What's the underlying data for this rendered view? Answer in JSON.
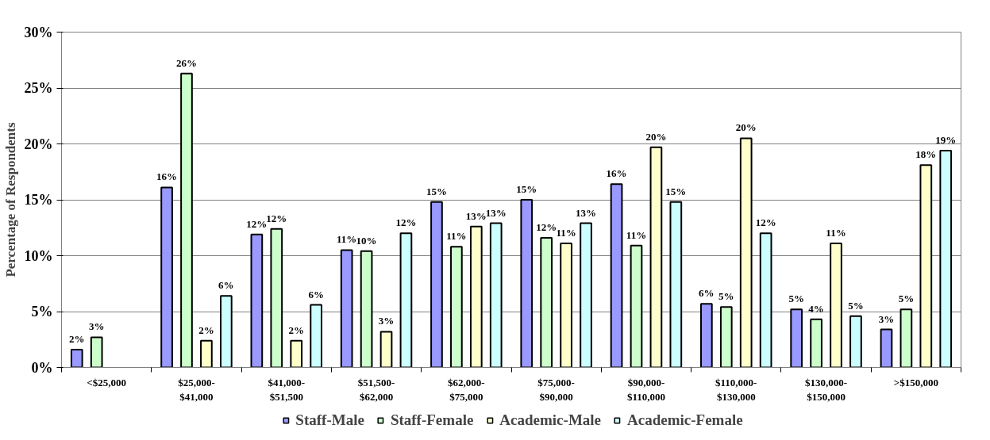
{
  "chart_data": {
    "type": "bar",
    "ylabel": "Percentage of Respondents",
    "categories": [
      "<$25,000",
      "$25,000-\n$41,000",
      "$41,000-\n$51,500",
      "$51,500-\n$62,000",
      "$62,000-\n$75,000",
      "$75,000-\n$90,000",
      "$90,000-\n$110,000",
      "$110,000-\n$130,000",
      "$130,000-\n$150,000",
      ">$150,000"
    ],
    "series": [
      {
        "name": "Staff-Male",
        "color": "#9999ff",
        "values": [
          1.6,
          16.1,
          11.9,
          10.5,
          14.8,
          15.0,
          16.4,
          5.7,
          5.2,
          3.4
        ],
        "value_labels": [
          "2%",
          "16%",
          "12%",
          "11%",
          "15%",
          "15%",
          "16%",
          "6%",
          "5%",
          "3%"
        ]
      },
      {
        "name": "Staff-Female",
        "color": "#ccffcc",
        "values": [
          2.7,
          26.3,
          12.4,
          10.4,
          10.8,
          11.6,
          10.9,
          5.4,
          4.3,
          5.2
        ],
        "value_labels": [
          "3%",
          "26%",
          "12%",
          "10%",
          "11%",
          "12%",
          "11%",
          "5%",
          "4%",
          "5%"
        ]
      },
      {
        "name": "Academic-Male",
        "color": "#ffffcc",
        "values": [
          null,
          2.4,
          2.4,
          3.2,
          12.6,
          11.1,
          19.7,
          20.5,
          11.1,
          18.1
        ],
        "value_labels": [
          null,
          "2%",
          "2%",
          "3%",
          "13%",
          "11%",
          "20%",
          "20%",
          "11%",
          "18%"
        ]
      },
      {
        "name": "Academic-Female",
        "color": "#ccffff",
        "values": [
          null,
          6.4,
          5.6,
          12.0,
          12.9,
          12.9,
          14.8,
          12.0,
          4.6,
          19.4
        ],
        "value_labels": [
          null,
          "6%",
          "6%",
          "12%",
          "13%",
          "13%",
          "15%",
          "12%",
          "5%",
          "19%"
        ]
      }
    ],
    "ylim": [
      0,
      30
    ],
    "yticks": [
      {
        "value": 0,
        "label": "0%"
      },
      {
        "value": 5,
        "label": "5%"
      },
      {
        "value": 10,
        "label": "10%"
      },
      {
        "value": 15,
        "label": "15%"
      },
      {
        "value": 20,
        "label": "20%"
      },
      {
        "value": 25,
        "label": "25%"
      },
      {
        "value": 30,
        "label": "30%"
      }
    ],
    "grid": "y",
    "legend": "bottom"
  }
}
